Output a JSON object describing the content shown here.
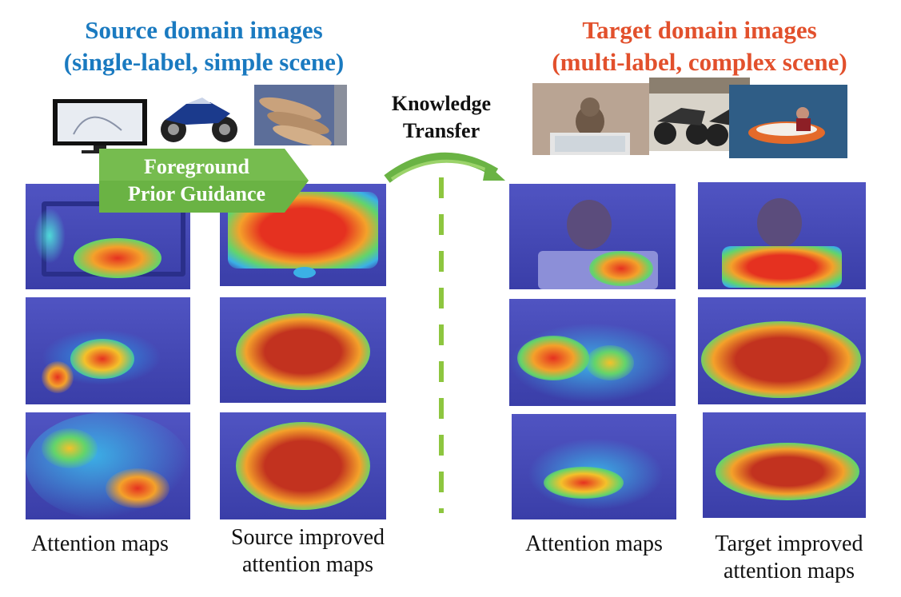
{
  "source": {
    "title_line1": "Source domain images",
    "title_line2": "(single-label, simple scene)",
    "caption_attention": "Attention maps",
    "caption_improved_line1": "Source improved",
    "caption_improved_line2": "attention maps"
  },
  "target": {
    "title_line1": "Target domain images",
    "title_line2": "(multi-label, complex scene)",
    "caption_attention": "Attention maps",
    "caption_improved_line1": "Target improved",
    "caption_improved_line2": "attention maps"
  },
  "arrow_label_line1": "Knowledge",
  "arrow_label_line2": "Transfer",
  "banner_line1": "Foreground",
  "banner_line2": "Prior Guidance",
  "colors": {
    "source_title": "#1a7ac0",
    "target_title": "#e2502c",
    "banner": "#6ab344",
    "divider": "#8dc63f"
  }
}
